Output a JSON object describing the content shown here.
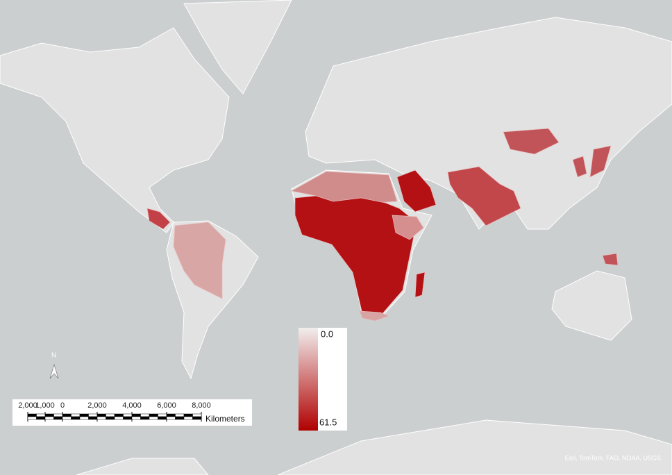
{
  "legend": {
    "min": {
      "value": 0,
      "label": "0.0"
    },
    "max": 61.5
  },
  "scale_bar": {
    "ticks": [
      {
        "value": -2000,
        "label": "2,000"
      },
      {
        "value": -1000,
        "label": "1,000"
      },
      0,
      {
        "value": 2000,
        "label": "2,000"
      },
      {
        "value": 4000,
        "label": "4,000"
      },
      {
        "value": 6000,
        "label": "6,000"
      },
      {
        "value": 8000,
        "label": "8,000"
      }
    ],
    "unit": "Kilometers"
  },
  "north_arrow": "N",
  "attribution": "Esri, TomTom, FAO, NOAA, USGS"
}
